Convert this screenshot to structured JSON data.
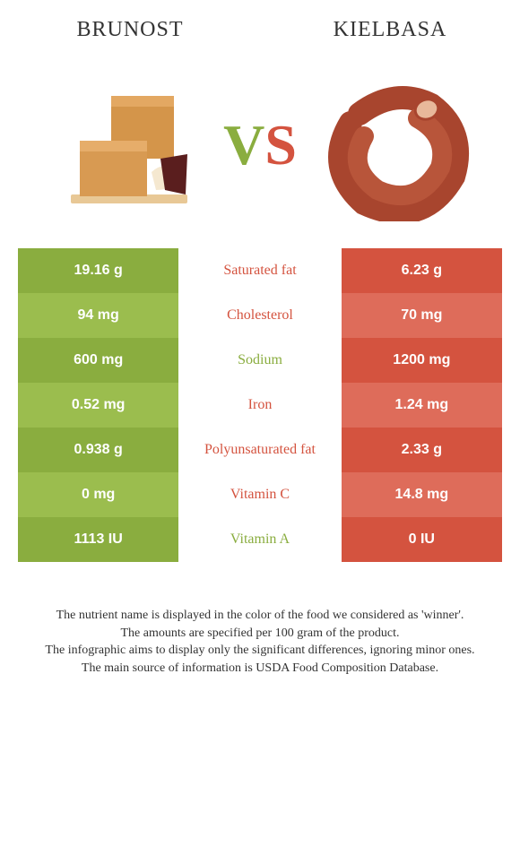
{
  "header": {
    "left": "Brunost",
    "right": "Kielbasa"
  },
  "vs": {
    "v": "V",
    "s": "S"
  },
  "colors": {
    "left_a": "#8aad3f",
    "left_b": "#9bbd4e",
    "right_a": "#d4533f",
    "right_b": "#de6c5a",
    "mid_left": "#8aad3f",
    "mid_right": "#d4533f"
  },
  "rows": [
    {
      "left": "19.16 g",
      "label": "Saturated fat",
      "right": "6.23 g",
      "winner": "right"
    },
    {
      "left": "94 mg",
      "label": "Cholesterol",
      "right": "70 mg",
      "winner": "right"
    },
    {
      "left": "600 mg",
      "label": "Sodium",
      "right": "1200 mg",
      "winner": "left"
    },
    {
      "left": "0.52 mg",
      "label": "Iron",
      "right": "1.24 mg",
      "winner": "right"
    },
    {
      "left": "0.938 g",
      "label": "Polyunsaturated fat",
      "right": "2.33 g",
      "winner": "right"
    },
    {
      "left": "0 mg",
      "label": "Vitamin C",
      "right": "14.8 mg",
      "winner": "right"
    },
    {
      "left": "1113 IU",
      "label": "Vitamin A",
      "right": "0 IU",
      "winner": "left"
    }
  ],
  "footnotes": [
    "The nutrient name is displayed in the color of the food we considered as 'winner'.",
    "The amounts are specified per 100 gram of the product.",
    "The infographic aims to display only the significant differences, ignoring minor ones.",
    "The main source of information is USDA Food Composition Database."
  ]
}
